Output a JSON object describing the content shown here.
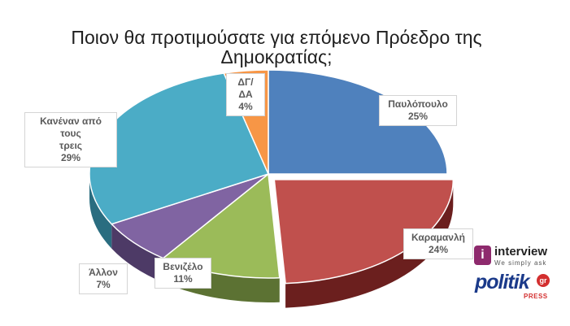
{
  "chart_data": {
    "type": "pie",
    "title": "Ποιον θα προτιμούσατε για επόμενο Πρόεδρο της Δημοκρατίας;",
    "title_lines": [
      "Ποιον θα προτιμούσατε για επόμενο Πρόεδρο της",
      "Δημοκρατίας;"
    ],
    "slices": [
      {
        "label": "Παυλόπουλο",
        "value": 25,
        "display": "25%",
        "color": "#4f81bd",
        "side": "#2f4e73"
      },
      {
        "label": "Καραμανλή",
        "value": 24,
        "display": "24%",
        "color": "#c0504d",
        "side": "#6b1f1e",
        "exploded": true
      },
      {
        "label": "Βενιζέλο",
        "value": 11,
        "display": "11%",
        "color": "#9bbb59",
        "side": "#5c7233"
      },
      {
        "label": "Άλλον",
        "value": 7,
        "display": "7%",
        "color": "#8064a2",
        "side": "#4d3a66"
      },
      {
        "label_lines": [
          "Κανέναν από τους",
          "τρεις"
        ],
        "label": "Κανέναν από τους τρεις",
        "value": 29,
        "display": "29%",
        "color": "#4bacc6",
        "side": "#2a6d80"
      },
      {
        "label": "ΔΓ/ΔΑ",
        "value": 4,
        "display": "4%",
        "color": "#f79646",
        "side": "#a85a1c"
      }
    ],
    "legend": "none",
    "labels": "callouts"
  },
  "logos": {
    "interview": {
      "word": "interview",
      "badge": "i",
      "tagline": "We simply ask"
    },
    "politik": {
      "word": "politik",
      "badge": "gr",
      "sub": "PRESS"
    }
  }
}
